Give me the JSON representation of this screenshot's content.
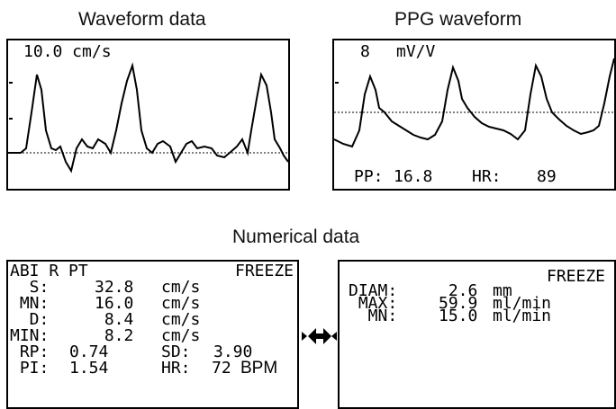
{
  "captions": {
    "waveform": "Waveform data",
    "ppg": "PPG waveform",
    "numerical": "Numerical data"
  },
  "waveform_panel": {
    "scale_label": "10.0 cm/s"
  },
  "ppg_panel": {
    "scale_value": "8",
    "scale_unit": "mV/V",
    "pp_label": "PP:",
    "pp_value": "16.8",
    "hr_label": "HR:",
    "hr_value": "89"
  },
  "numeric_left": {
    "header_left": "ABI R PT",
    "header_right": "FREEZE",
    "rows": [
      {
        "label": "  S:",
        "value": "32.8",
        "unit": "cm/s"
      },
      {
        "label": " MN:",
        "value": "16.0",
        "unit": "cm/s"
      },
      {
        "label": "  D:",
        "value": " 8.4",
        "unit": "cm/s"
      },
      {
        "label": "MIN:",
        "value": " 8.2",
        "unit": "cm/s"
      }
    ],
    "rp_label": " RP:",
    "rp_value": "0.74",
    "sd_label": "SD:",
    "sd_value": "3.90",
    "pi_label": " PI:",
    "pi_value": "1.54",
    "hr_label": "HR:",
    "hr_value": "72",
    "hr_unit": "BPM"
  },
  "numeric_right": {
    "header_right": "FREEZE",
    "rows": [
      {
        "label": "DIAM:",
        "value": " 2.6",
        "unit": "mm"
      },
      {
        "label": " MAX:",
        "value": "59.9",
        "unit": "ml/min"
      },
      {
        "label": "  MN:",
        "value": "15.0",
        "unit": "ml/min"
      }
    ]
  },
  "icons": {
    "double_arrow": "double-arrow-icon",
    "right_marker": "right-triangle-marker-icon",
    "left_marker": "left-triangle-marker-icon"
  }
}
